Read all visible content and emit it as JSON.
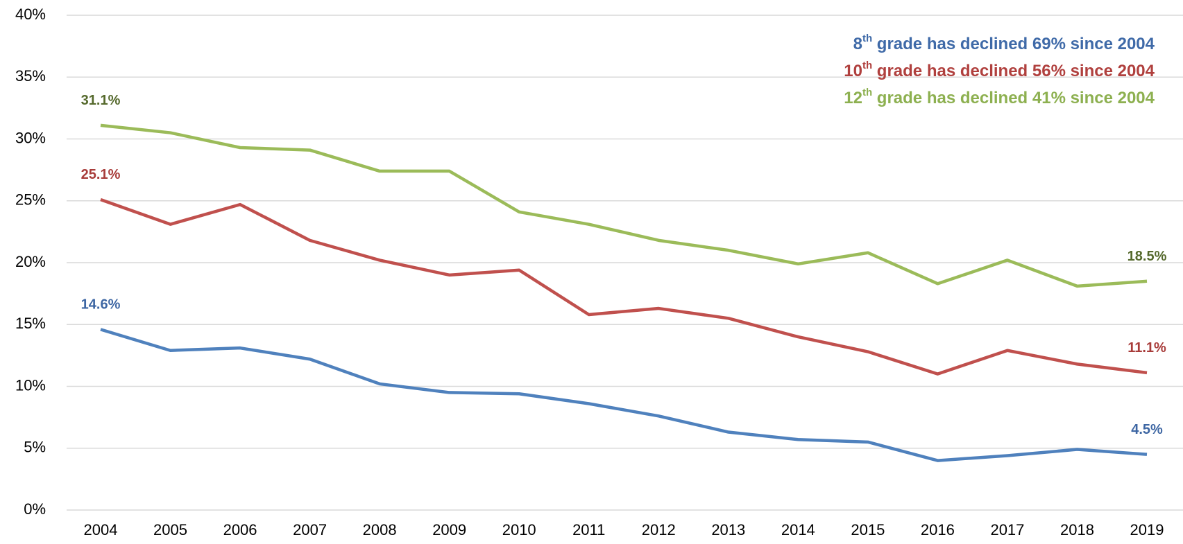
{
  "chart_data": {
    "type": "line",
    "categories": [
      "2004",
      "2005",
      "2006",
      "2007",
      "2008",
      "2009",
      "2010",
      "2011",
      "2012",
      "2013",
      "2014",
      "2015",
      "2016",
      "2017",
      "2018",
      "2019"
    ],
    "series": [
      {
        "name": "8th grade",
        "color": "#4f81bd",
        "label_color": "#3d66a3",
        "values": [
          14.6,
          12.9,
          13.1,
          12.2,
          10.2,
          9.5,
          9.4,
          8.6,
          7.6,
          6.3,
          5.7,
          5.5,
          4.0,
          4.4,
          4.9,
          4.5
        ],
        "value_labels": [
          "14.6%",
          null,
          null,
          null,
          null,
          null,
          null,
          null,
          null,
          null,
          null,
          null,
          null,
          null,
          null,
          "4.5%"
        ]
      },
      {
        "name": "10th grade",
        "color": "#c0504d",
        "label_color": "#a83c3a",
        "values": [
          25.1,
          23.1,
          24.7,
          21.8,
          20.2,
          19.0,
          19.4,
          15.8,
          16.3,
          15.5,
          14.0,
          12.8,
          11.0,
          12.9,
          11.8,
          11.1
        ],
        "value_labels": [
          "25.1%",
          null,
          null,
          null,
          null,
          null,
          null,
          null,
          null,
          null,
          null,
          null,
          null,
          null,
          null,
          "11.1%"
        ]
      },
      {
        "name": "12th grade",
        "color": "#9bbb59",
        "label_color": "#55692c",
        "values": [
          31.1,
          30.5,
          29.3,
          29.1,
          27.4,
          27.4,
          24.1,
          23.1,
          21.8,
          21.0,
          19.9,
          20.8,
          18.3,
          20.2,
          18.1,
          18.5
        ],
        "value_labels": [
          "31.1%",
          null,
          null,
          null,
          null,
          null,
          null,
          null,
          null,
          null,
          null,
          null,
          null,
          null,
          null,
          "18.5%"
        ]
      }
    ],
    "annotations": [
      {
        "ordinal": "8",
        "suffix": "th",
        "text": " grade has declined 69% since 2004",
        "color": "#3f6aa8"
      },
      {
        "ordinal": "10",
        "suffix": "th",
        "text": " grade has declined 56% since 2004",
        "color": "#b0403e"
      },
      {
        "ordinal": "12",
        "suffix": "th",
        "text": " grade has declined 41% since 2004",
        "color": "#8db050"
      }
    ],
    "ylim": [
      0,
      40
    ],
    "yticks": [
      {
        "value": 0,
        "label": "0%"
      },
      {
        "value": 5,
        "label": "5%"
      },
      {
        "value": 10,
        "label": "10%"
      },
      {
        "value": 15,
        "label": "15%"
      },
      {
        "value": 20,
        "label": "20%"
      },
      {
        "value": 25,
        "label": "25%"
      },
      {
        "value": 30,
        "label": "30%"
      },
      {
        "value": 35,
        "label": "35%"
      },
      {
        "value": 40,
        "label": "40%"
      }
    ],
    "grid": true
  }
}
